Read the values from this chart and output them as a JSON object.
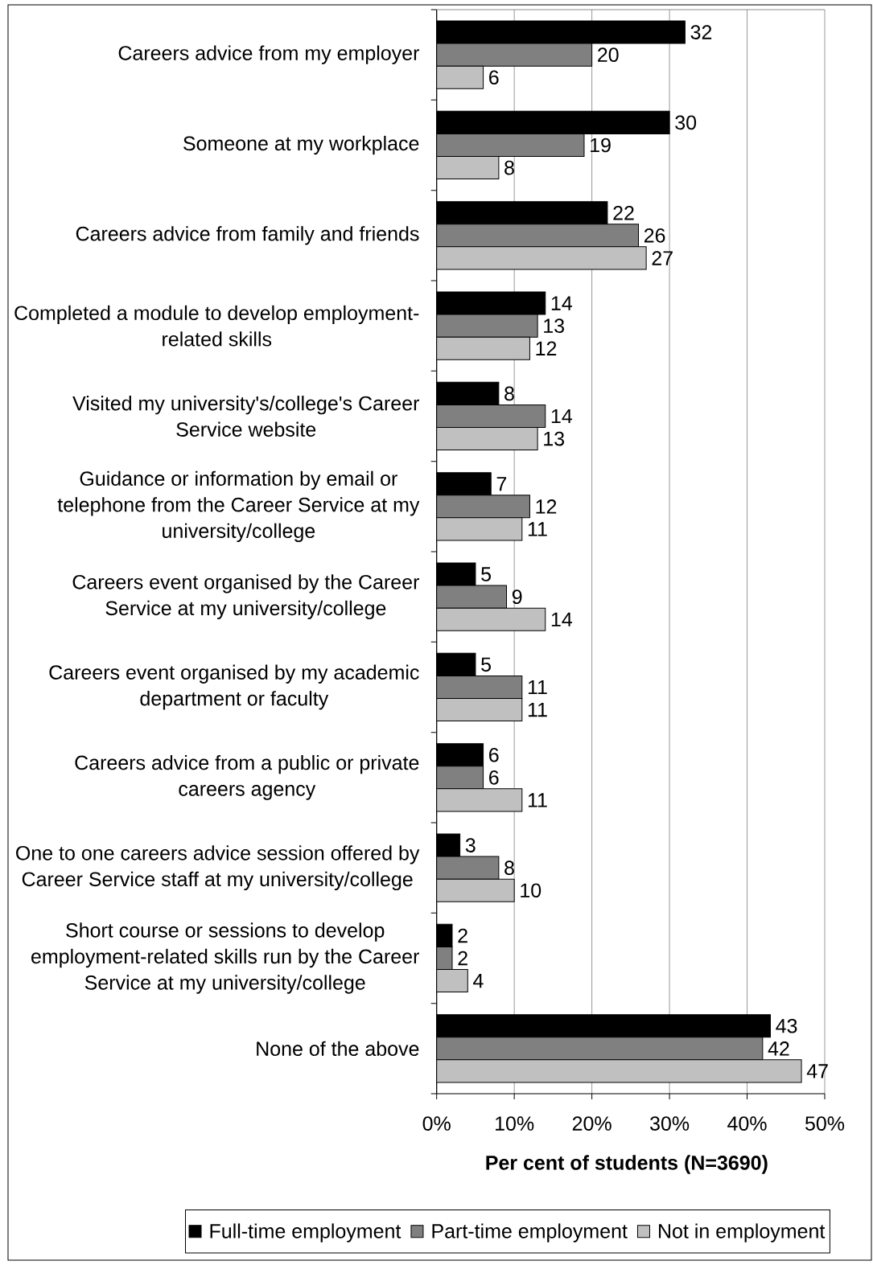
{
  "chart_data": {
    "type": "bar",
    "orientation": "horizontal",
    "xlabel": "Per cent of students (N=3690)",
    "categories": [
      "Careers advice from my employer",
      "Someone at my workplace",
      "Careers advice from family and friends",
      "Completed a module to develop employment-related skills",
      "Visited my university's/college's Career Service website",
      "Guidance or information by email or telephone from the Career Service at my university/college",
      "Careers event organised by the Career Service at my university/college",
      "Careers event organised by my academic department or faculty",
      "Careers advice from a public or private careers agency",
      "One to one careers advice session offered by Career Service staff at my university/college",
      "Short course or sessions to develop employment-related skills run by the Career Service at my university/college",
      "None of the above"
    ],
    "series": [
      {
        "name": "Full-time employment",
        "color": "#000000",
        "values": [
          32,
          30,
          22,
          14,
          8,
          7,
          5,
          5,
          6,
          3,
          2,
          43
        ]
      },
      {
        "name": "Part-time employment",
        "color": "#808080",
        "values": [
          20,
          19,
          26,
          13,
          14,
          12,
          9,
          11,
          6,
          8,
          2,
          42
        ]
      },
      {
        "name": "Not in employment",
        "color": "#c0c0c0",
        "values": [
          6,
          8,
          27,
          12,
          13,
          11,
          14,
          11,
          11,
          10,
          4,
          47
        ]
      }
    ],
    "xlim": [
      0,
      50
    ],
    "xticks": [
      {
        "value": 0,
        "label": "0%"
      },
      {
        "value": 10,
        "label": "10%"
      },
      {
        "value": 20,
        "label": "20%"
      },
      {
        "value": 30,
        "label": "30%"
      },
      {
        "value": 40,
        "label": "40%"
      },
      {
        "value": 50,
        "label": "50%"
      }
    ],
    "grid": "x",
    "legend": "bottom",
    "data_labels": true
  }
}
